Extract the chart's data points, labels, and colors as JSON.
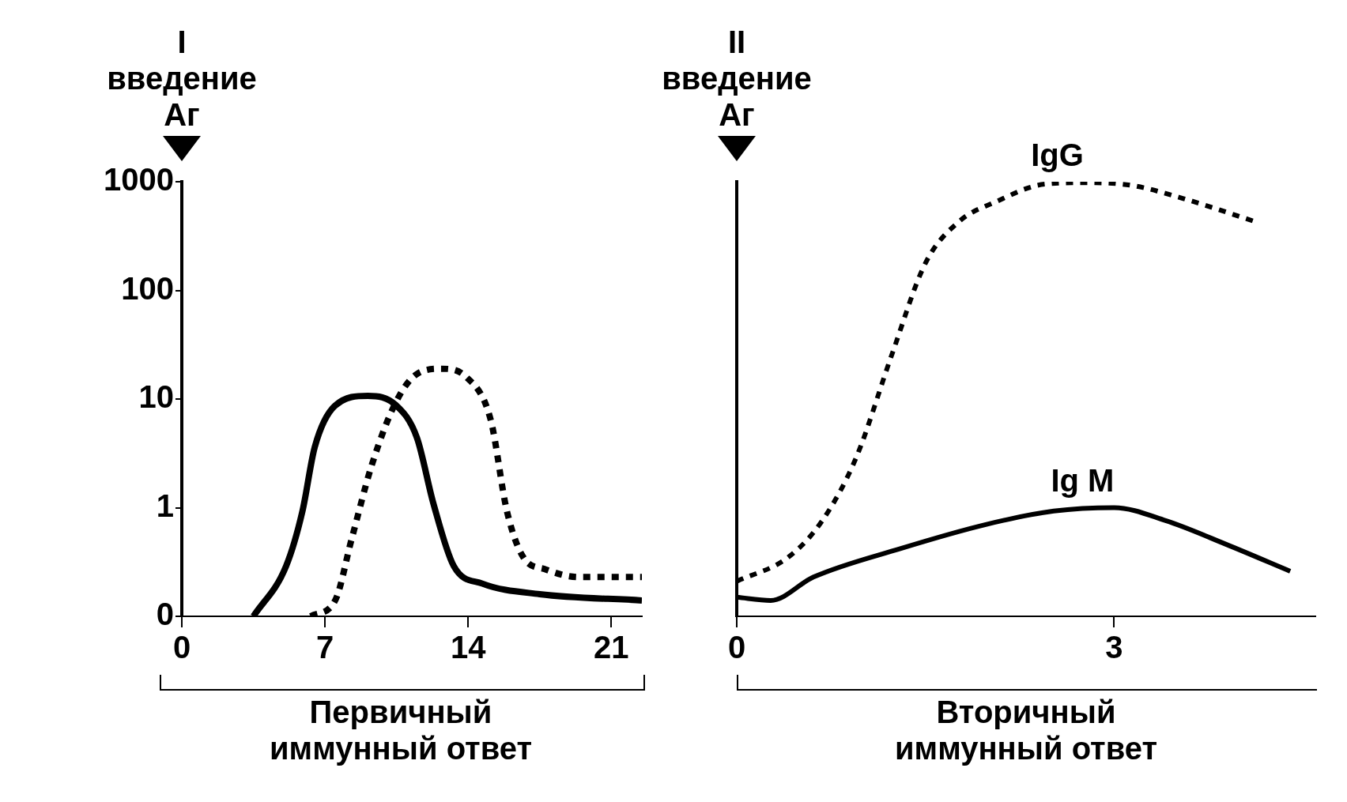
{
  "chart_data": [
    {
      "type": "line",
      "annotations": [
        "I\nвведение\nАг",
        "Первичный\nиммунный ответ"
      ],
      "log": "y",
      "grid": false,
      "legend": false,
      "tick_labels": true,
      "xlim": [
        0,
        22.5
      ],
      "xticks": [
        0,
        7,
        14,
        21
      ],
      "ylim": [
        0.1,
        1000
      ],
      "yticks": [
        {
          "value": 0.1,
          "label": "0"
        },
        1,
        10,
        100,
        1000
      ],
      "series": [
        {
          "color": "#000000",
          "line_style": "solid",
          "x": [
            3.5,
            5.1,
            5.9,
            6.5,
            7.5,
            9.1,
            10.5,
            11.5,
            12.3,
            13.3,
            14.7,
            17.5,
            22.5
          ],
          "values": [
            0.1,
            0.29,
            0.93,
            3.6,
            8.7,
            10.7,
            8.7,
            4.4,
            1.1,
            0.29,
            0.2,
            0.16,
            0.14
          ]
        },
        {
          "color": "#000000",
          "line_style": "dotted",
          "x": [
            6.3,
            7.5,
            8.3,
            9.3,
            10.5,
            11.5,
            12.7,
            13.9,
            15.1,
            15.9,
            16.7,
            17.8,
            19.4,
            22.5
          ],
          "values": [
            0.1,
            0.14,
            0.51,
            2.5,
            9.6,
            17,
            19,
            16,
            6.5,
            0.93,
            0.35,
            0.27,
            0.23,
            0.23
          ]
        }
      ]
    },
    {
      "type": "line",
      "annotations": [
        "II\nвведение\nАг",
        "Вторичный\nиммунный ответ"
      ],
      "log": "y",
      "grid": false,
      "legend": false,
      "tick_labels": "x",
      "xlim": [
        0,
        4.6
      ],
      "xticks": [
        0,
        3
      ],
      "ylim": [
        0.1,
        1000
      ],
      "series": [
        {
          "name": "IgG",
          "color": "#000000",
          "line_style": "dotted",
          "x": [
            0,
            0.41,
            0.68,
            0.95,
            1.23,
            1.5,
            1.77,
            2.05,
            2.45,
            2.8,
            3.14,
            3.55,
            4.12
          ],
          "values": [
            0.21,
            0.35,
            0.76,
            2.9,
            25,
            178,
            433,
            646,
            950,
            980,
            925,
            700,
            430
          ]
        },
        {
          "name": "Ig M",
          "color": "#000000",
          "line_style": "solid",
          "x": [
            0,
            0.27,
            0.61,
            1.3,
            1.98,
            2.52,
            3,
            3.41,
            3.89,
            4.4
          ],
          "values": [
            0.15,
            0.14,
            0.23,
            0.42,
            0.7,
            0.93,
            1.0,
            0.76,
            0.46,
            0.26
          ]
        }
      ]
    }
  ]
}
